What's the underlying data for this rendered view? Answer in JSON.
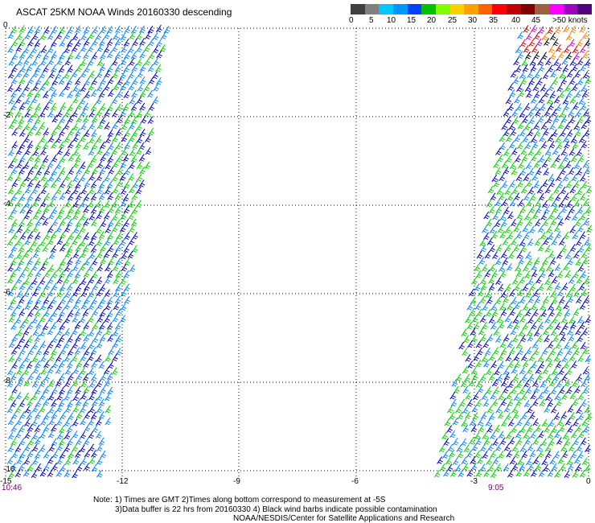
{
  "title": "ASCAT 25KM NOAA Winds 20160330 descending",
  "legend": {
    "labels": [
      "0",
      "5",
      "10",
      "15",
      "20",
      "25",
      "30",
      "35",
      "40",
      "45",
      ">50 knots"
    ],
    "colors": [
      "#404040",
      "#808080",
      "#00c8ff",
      "#0096ff",
      "#0040ff",
      "#00c000",
      "#80ff00",
      "#ffd000",
      "#ffa000",
      "#ff6000",
      "#ff0000",
      "#c00000",
      "#800000",
      "#a06040",
      "#ff00ff",
      "#a000c0",
      "#500080"
    ]
  },
  "axes": {
    "y_labels": [
      "0",
      "-2",
      "-4",
      "-6",
      "-8",
      "-10"
    ],
    "x_labels": [
      "-15",
      "-12",
      "-9",
      "-6",
      "-3",
      "0"
    ]
  },
  "times": {
    "left": "10:46",
    "right": "9:05"
  },
  "notes": {
    "line1": "Note: 1) Times are GMT 2)Times along bottom correspond to measurement at -5S",
    "line2": "3)Data buffer is 22 hrs from 20160330 4) Black wind barbs indicate possible contamination",
    "line3": "NOAA/NESDIS/Center for Satellite Applications and Research"
  },
  "barb_colors": {
    "blue": "#0000c0",
    "light_blue": "#0080ff",
    "green": "#00d000",
    "black": "#000000",
    "red": "#d00000",
    "magenta": "#c000c0",
    "orange": "#ff8000"
  }
}
